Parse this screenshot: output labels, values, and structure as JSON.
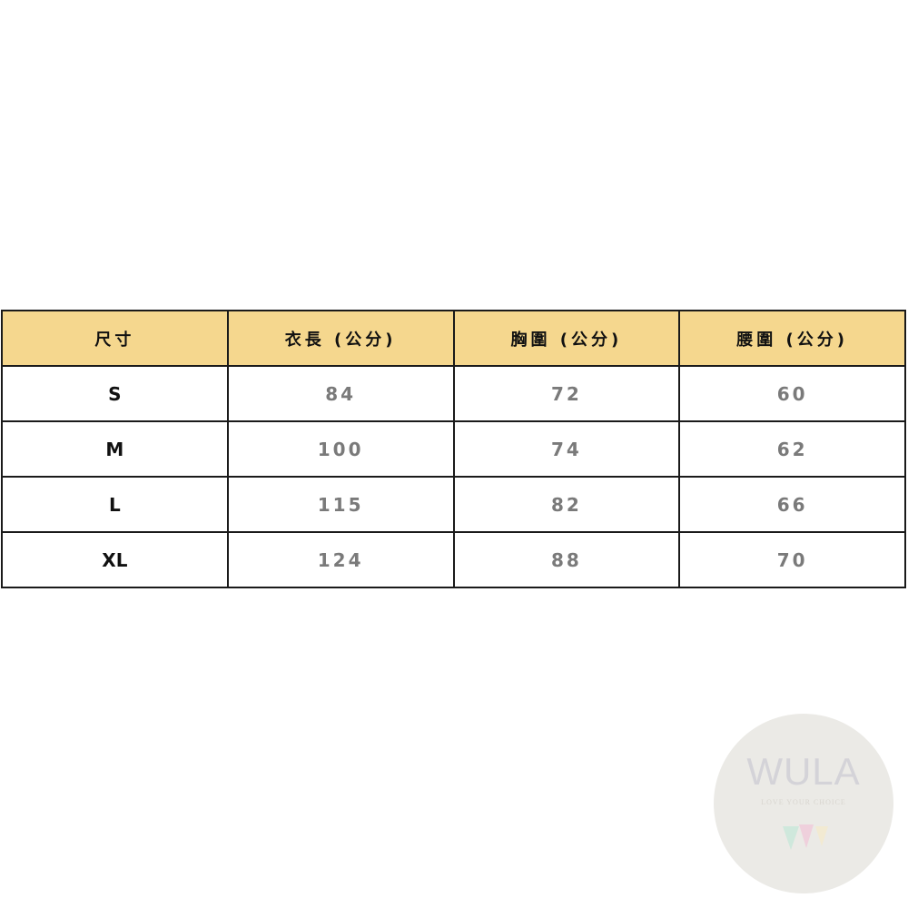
{
  "table": {
    "headers": [
      "尺寸",
      "衣長 (公分)",
      "胸圍 (公分)",
      "腰圍 (公分)"
    ],
    "rows": [
      {
        "size": "S",
        "length": "84",
        "chest": "72",
        "waist": "60"
      },
      {
        "size": "M",
        "length": "100",
        "chest": "74",
        "waist": "62"
      },
      {
        "size": "L",
        "length": "115",
        "chest": "82",
        "waist": "66"
      },
      {
        "size": "XL",
        "length": "124",
        "chest": "88",
        "waist": "70"
      }
    ]
  },
  "colors": {
    "header_bg": "#f5d78e",
    "value_text": "#7a7a7a",
    "border": "#1a1a1a"
  },
  "logo": {
    "wordmark": "WULA",
    "tagline": "LOVE YOUR CHOICE"
  }
}
